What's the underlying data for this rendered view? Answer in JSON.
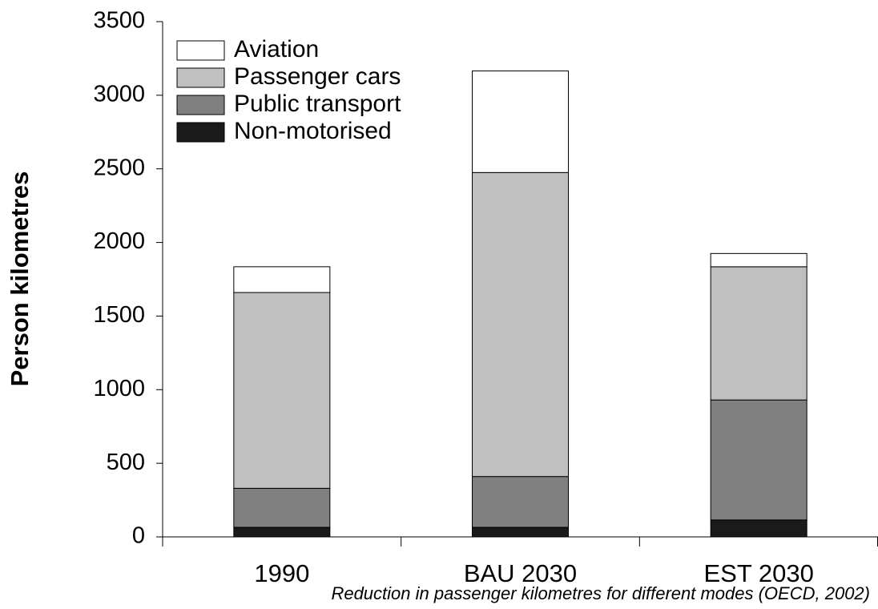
{
  "chart_data": {
    "type": "stacked_bar",
    "y_label": "Person kilometres",
    "caption": "Reduction in passenger kilometres for different modes (OECD, 2002)",
    "categories": [
      "1990",
      "BAU 2030",
      "EST 2030"
    ],
    "series": [
      {
        "name": "Non-motorised",
        "color": "#1a1a1a",
        "values": [
          65,
          65,
          115
        ]
      },
      {
        "name": "Public transport",
        "color": "#808080",
        "values": [
          265,
          345,
          815
        ]
      },
      {
        "name": "Passenger cars",
        "color": "#c0c0c0",
        "values": [
          1330,
          2065,
          905
        ]
      },
      {
        "name": "Aviation",
        "color": "#ffffff",
        "values": [
          175,
          690,
          90
        ]
      }
    ],
    "ylim": [
      0,
      3500
    ],
    "yticks": [
      0,
      500,
      1000,
      1500,
      2000,
      2500,
      3000,
      3500
    ],
    "legend": "upper left"
  }
}
